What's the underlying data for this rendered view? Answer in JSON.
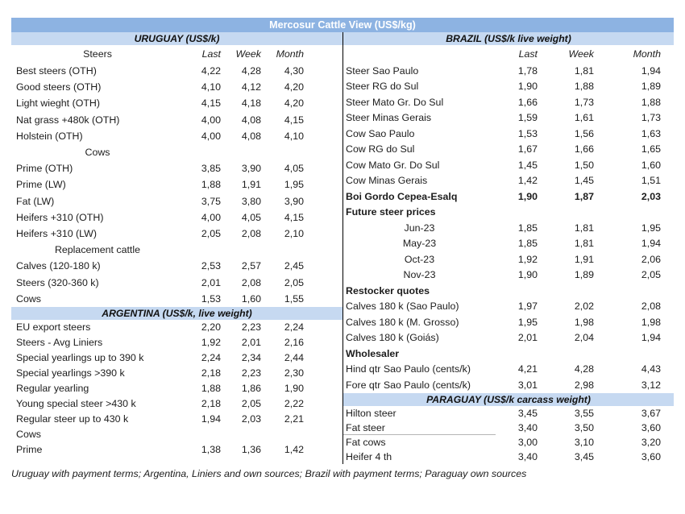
{
  "title": "Mercosur Cattle View (US$/kg)",
  "footer": "Uruguay with payment terms; Argentina, Liniers and own sources; Brazil with payment terms; Paraguay own sources",
  "colors": {
    "title_bar": "#8db3e2",
    "section_band": "#c6d9f1",
    "divider": "#000000"
  },
  "chart_data": {
    "type": "table",
    "title": "Mercosur Cattle View (US$/kg)",
    "column_headers": {
      "label_left": "Steers",
      "label_right": "",
      "last": "Last",
      "week": "Week",
      "month": "Month"
    },
    "left": {
      "uruguay": {
        "band": "URUGUAY (US$/k)",
        "rows": [
          {
            "label": "Best steers (OTH)",
            "last": "4,22",
            "week": "4,28",
            "month": "4,30"
          },
          {
            "label": "Good steers (OTH)",
            "last": "4,10",
            "week": "4,12",
            "month": "4,20"
          },
          {
            "label": "Light wieght (OTH)",
            "last": "4,15",
            "week": "4,18",
            "month": "4,20"
          },
          {
            "label": "Nat grass +480k (OTH)",
            "last": "4,00",
            "week": "4,08",
            "month": "4,15"
          },
          {
            "label": "Holstein (OTH)",
            "last": "4,00",
            "week": "4,08",
            "month": "4,10"
          },
          {
            "label": "Cows",
            "style": "center"
          },
          {
            "label": "Prime (OTH)",
            "last": "3,85",
            "week": "3,90",
            "month": "4,05"
          },
          {
            "label": "Prime (LW)",
            "last": "1,88",
            "week": "1,91",
            "month": "1,95"
          },
          {
            "label": "Fat (LW)",
            "last": "3,75",
            "week": "3,80",
            "month": "3,90"
          },
          {
            "label": "Heifers +310 (OTH)",
            "last": "4,00",
            "week": "4,05",
            "month": "4,15"
          },
          {
            "label": "Heifers +310 (LW)",
            "last": "2,05",
            "week": "2,08",
            "month": "2,10"
          },
          {
            "label": "Replacement cattle",
            "style": "center"
          },
          {
            "label": "Calves (120-180 k)",
            "last": "2,53",
            "week": "2,57",
            "month": "2,45"
          },
          {
            "label": "Steers (320-360 k)",
            "last": "2,01",
            "week": "2,08",
            "month": "2,05"
          },
          {
            "label": "Cows",
            "last": "1,53",
            "week": "1,60",
            "month": "1,55"
          }
        ]
      },
      "argentina": {
        "band": "ARGENTINA (US$/k, live weight)",
        "rows": [
          {
            "label": "EU export steers",
            "last": "2,20",
            "week": "2,23",
            "month": "2,24"
          },
          {
            "label": "Steers - Avg Liniers",
            "last": "1,92",
            "week": "2,01",
            "month": "2,16"
          },
          {
            "label": "Special yearlings up to 390 k",
            "last": "2,24",
            "week": "2,34",
            "month": "2,44"
          },
          {
            "label": "Special yearlings >390 k",
            "last": "2,18",
            "week": "2,23",
            "month": "2,30"
          },
          {
            "label": "Regular yearling",
            "last": "1,88",
            "week": "1,86",
            "month": "1,90"
          },
          {
            "label": "Young special steer >430 k",
            "last": "2,18",
            "week": "2,05",
            "month": "2,22"
          },
          {
            "label": "Regular steer up to 430 k",
            "last": "1,94",
            "week": "2,03",
            "month": "2,21"
          },
          {
            "label": "Cows"
          },
          {
            "label": "Prime",
            "last": "1,38",
            "week": "1,36",
            "month": "1,42"
          }
        ]
      }
    },
    "right": {
      "brazil": {
        "band": "BRAZIL  (US$/k live weight)",
        "rows": [
          {
            "label": "Steer Sao Paulo",
            "last": "1,78",
            "week": "1,81",
            "month": "1,94"
          },
          {
            "label": "Steer RG do Sul",
            "last": "1,90",
            "week": "1,88",
            "month": "1,89"
          },
          {
            "label": "Steer Mato Gr. Do Sul",
            "last": "1,66",
            "week": "1,73",
            "month": "1,88"
          },
          {
            "label": "Steer Minas Gerais",
            "last": "1,59",
            "week": "1,61",
            "month": "1,73"
          },
          {
            "label": "Cow Sao Paulo",
            "last": "1,53",
            "week": "1,56",
            "month": "1,63"
          },
          {
            "label": "Cow RG do Sul",
            "last": "1,67",
            "week": "1,66",
            "month": "1,65"
          },
          {
            "label": "Cow Mato Gr. Do Sul",
            "last": "1,45",
            "week": "1,50",
            "month": "1,60"
          },
          {
            "label": "Cow Minas Gerais",
            "last": "1,42",
            "week": "1,45",
            "month": "1,51"
          },
          {
            "label": "Boi Gordo Cepea-Esalq",
            "last": "1,90",
            "week": "1,87",
            "month": "2,03",
            "style": "bold"
          },
          {
            "label": "Future steer prices",
            "style": "bold"
          },
          {
            "label": "Jun-23",
            "last": "1,85",
            "week": "1,81",
            "month": "1,95",
            "style": "center"
          },
          {
            "label": "May-23",
            "last": "1,85",
            "week": "1,81",
            "month": "1,94",
            "style": "center"
          },
          {
            "label": "Oct-23",
            "last": "1,92",
            "week": "1,91",
            "month": "2,06",
            "style": "center"
          },
          {
            "label": "Nov-23",
            "last": "1,90",
            "week": "1,89",
            "month": "2,05",
            "style": "center"
          },
          {
            "label": "Restocker quotes",
            "style": "bold"
          },
          {
            "label": "Calves 180 k (Sao Paulo)",
            "last": "1,97",
            "week": "2,02",
            "month": "2,08"
          },
          {
            "label": "Calves 180 k (M. Grosso)",
            "last": "1,95",
            "week": "1,98",
            "month": "1,98"
          },
          {
            "label": "Calves 180 k (Goiás)",
            "last": "2,01",
            "week": "2,04",
            "month": "1,94"
          },
          {
            "label": "Wholesaler",
            "style": "bold"
          },
          {
            "label": "Hind qtr Sao Paulo (cents/k)",
            "last": "4,21",
            "week": "4,28",
            "month": "4,43"
          },
          {
            "label": "Fore qtr Sao Paulo (cents/k)",
            "last": "3,01",
            "week": "2,98",
            "month": "3,12"
          }
        ]
      },
      "paraguay": {
        "band": "PARAGUAY  (US$/k carcass weight)",
        "rows": [
          {
            "label": "Hilton steer",
            "last": "3,45",
            "week": "3,55",
            "month": "3,67"
          },
          {
            "label": "Fat steer",
            "last": "3,40",
            "week": "3,50",
            "month": "3,60",
            "style": "hairline"
          },
          {
            "label": "Fat cows",
            "last": "3,00",
            "week": "3,10",
            "month": "3,20"
          },
          {
            "label": "Heifer 4 th",
            "last": "3,40",
            "week": "3,45",
            "month": "3,60"
          }
        ]
      }
    }
  }
}
